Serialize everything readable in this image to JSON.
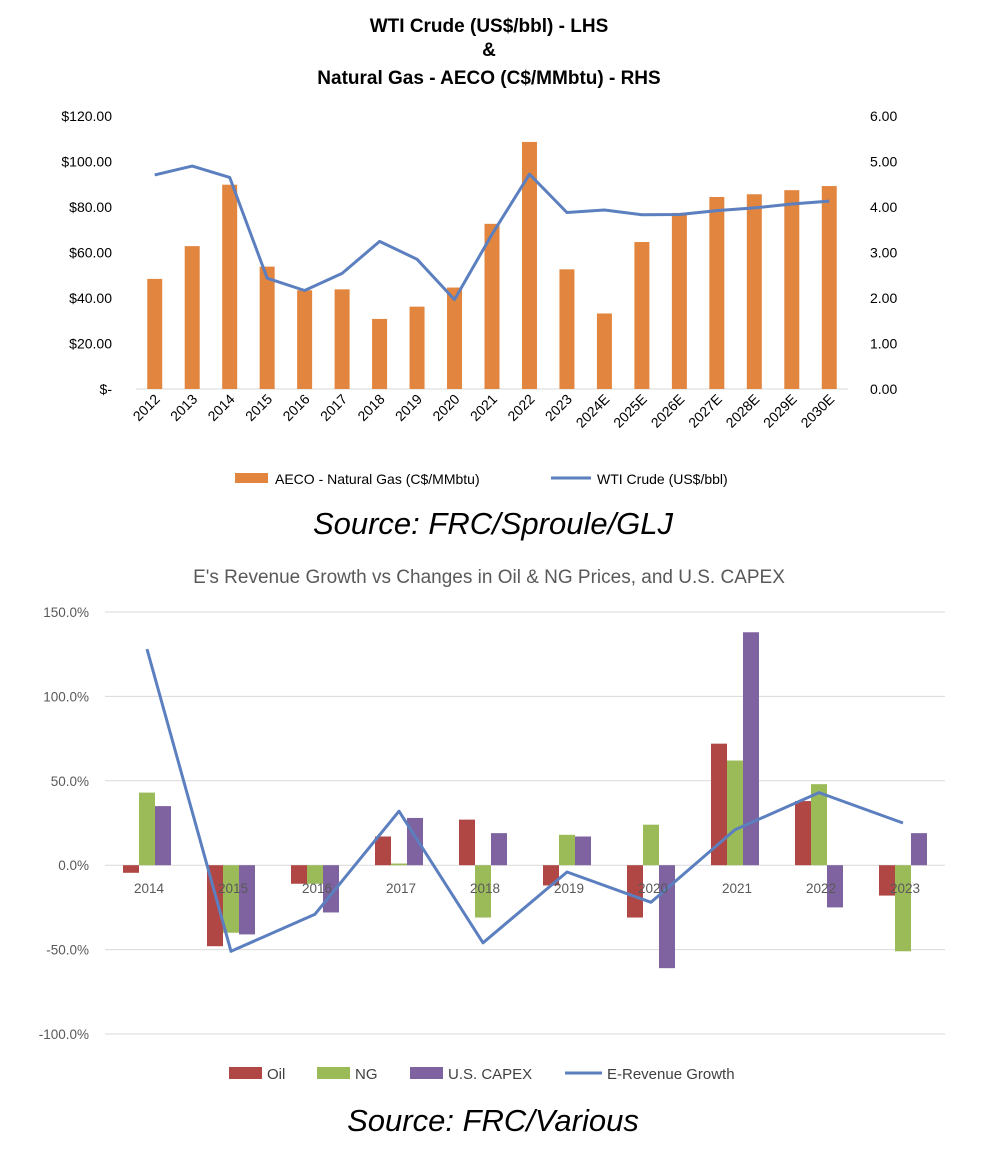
{
  "colors": {
    "aeco_bar": "#E2853E",
    "wti_line": "#5B7FBF",
    "oil": "#B04745",
    "ng": "#9BBB59",
    "capex": "#7F62A0",
    "revenue_line": "#5B7FBF",
    "gridline": "#d9d9d9"
  },
  "chart_data": [
    {
      "type": "bar",
      "title_lines": [
        "WTI Crude (US$/bbl) - LHS",
        "&",
        "Natural Gas - AECO (C$/MMbtu) - RHS"
      ],
      "categories": [
        "2012",
        "2013",
        "2014",
        "2015",
        "2016",
        "2017",
        "2018",
        "2019",
        "2020",
        "2021",
        "2022",
        "2023",
        "2024E",
        "2025E",
        "2026E",
        "2027E",
        "2028E",
        "2029E",
        "2030E"
      ],
      "series": [
        {
          "name": "AECO - Natural Gas (C$/MMbtu)",
          "type": "bar",
          "axis": "right",
          "values": [
            2.42,
            3.14,
            4.49,
            2.69,
            2.17,
            2.19,
            1.54,
            1.81,
            2.23,
            3.63,
            5.43,
            2.63,
            1.66,
            3.23,
            3.87,
            4.22,
            4.28,
            4.37,
            4.46
          ]
        },
        {
          "name": "WTI Crude (US$/bbl)",
          "type": "line",
          "axis": "left",
          "values": [
            94.1,
            98.0,
            93.0,
            48.7,
            43.3,
            50.8,
            64.9,
            57.0,
            39.3,
            68.0,
            94.4,
            77.6,
            78.7,
            76.6,
            76.7,
            78.4,
            79.6,
            81.3,
            82.6
          ]
        }
      ],
      "ylim_left": [
        0,
        120
      ],
      "yticks_left": [
        "$-",
        "$20.00",
        "$40.00",
        "$60.00",
        "$80.00",
        "$100.00",
        "$120.00"
      ],
      "ylim_right": [
        0,
        6
      ],
      "yticks_right": [
        "0.00",
        "1.00",
        "2.00",
        "3.00",
        "4.00",
        "5.00",
        "6.00"
      ],
      "grid": false,
      "legend": "bottom"
    },
    {
      "type": "bar",
      "title": "E's Revenue Growth vs Changes in Oil & NG Prices, and U.S. CAPEX",
      "categories": [
        "2014",
        "2015",
        "2016",
        "2017",
        "2018",
        "2019",
        "2020",
        "2021",
        "2022",
        "2023"
      ],
      "series": [
        {
          "name": "Oil",
          "type": "bar",
          "values": [
            -4.5,
            -48,
            -11,
            17,
            27,
            -12,
            -31,
            72,
            38,
            -18
          ]
        },
        {
          "name": "NG",
          "type": "bar",
          "values": [
            43,
            -40,
            -11,
            1,
            -31,
            18,
            24,
            62,
            48,
            -51
          ]
        },
        {
          "name": "U.S. CAPEX",
          "type": "bar",
          "values": [
            35,
            -41,
            -28,
            28,
            19,
            17,
            -61,
            138,
            -25,
            19
          ]
        },
        {
          "name": "E-Revenue Growth",
          "type": "line",
          "values": [
            128,
            -51,
            -29,
            32,
            -46,
            -4,
            -22,
            21,
            43,
            25
          ]
        }
      ],
      "ylim": [
        -100,
        150
      ],
      "yticks": [
        "-100.0%",
        "-50.0%",
        "0.0%",
        "50.0%",
        "100.0%",
        "150.0%"
      ],
      "grid": true,
      "legend": "bottom"
    }
  ],
  "sources": {
    "chart1": "Source: FRC/Sproule/GLJ",
    "chart2": "Source: FRC/Various"
  }
}
